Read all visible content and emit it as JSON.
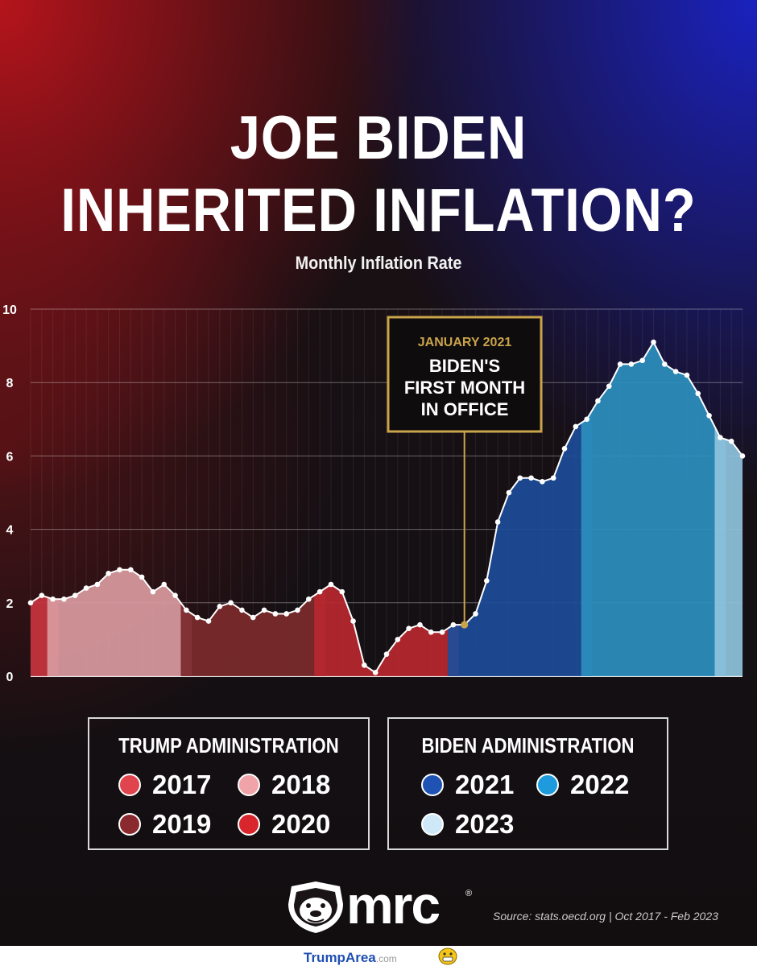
{
  "title_line_1": "JOE BIDEN",
  "title_line_2": "INHERITED INFLATION?",
  "subtitle": "Monthly Inflation Rate",
  "chart_data": {
    "type": "area",
    "ylim": [
      0,
      10
    ],
    "yticks": [
      "0",
      "2",
      "4",
      "6",
      "8",
      "10"
    ],
    "grid": true,
    "x_range": [
      "Oct 2017",
      "Feb 2023"
    ],
    "values": [
      2.0,
      2.2,
      2.1,
      2.1,
      2.2,
      2.4,
      2.5,
      2.8,
      2.9,
      2.9,
      2.7,
      2.3,
      2.5,
      2.2,
      1.8,
      1.6,
      1.5,
      1.9,
      2.0,
      1.8,
      1.6,
      1.8,
      1.7,
      1.7,
      1.8,
      2.1,
      2.3,
      2.5,
      2.3,
      1.5,
      0.3,
      0.1,
      0.6,
      1.0,
      1.3,
      1.4,
      1.2,
      1.2,
      1.4,
      1.4,
      1.7,
      2.6,
      4.2,
      5.0,
      5.4,
      5.4,
      5.3,
      5.4,
      6.2,
      6.8,
      7.0,
      7.5,
      7.9,
      8.5,
      8.5,
      8.6,
      9.1,
      8.5,
      8.3,
      8.2,
      7.7,
      7.1,
      6.5,
      6.4,
      6.0
    ],
    "year_segments": [
      {
        "year": "2017",
        "from": 0,
        "to": 2,
        "color": "#c7343f"
      },
      {
        "year": "2018",
        "from": 2,
        "to": 14,
        "color": "#d99a9f"
      },
      {
        "year": "2019",
        "from": 14,
        "to": 26,
        "color": "#7c2a2d"
      },
      {
        "year": "2020",
        "from": 26,
        "to": 38,
        "color": "#b8282f"
      },
      {
        "year": "2021",
        "from": 38,
        "to": 50,
        "color": "#1d4c99"
      },
      {
        "year": "2022",
        "from": 50,
        "to": 62,
        "color": "#2d8fbe"
      },
      {
        "year": "2023",
        "from": 62,
        "to": 64,
        "color": "#8fc3dd"
      }
    ],
    "annotation": {
      "index": 39,
      "heading": "JANUARY 2021",
      "lines": [
        "BIDEN'S",
        "FIRST MONTH",
        "IN OFFICE"
      ],
      "color": "#c9a44a"
    }
  },
  "legend": {
    "trump_title": "TRUMP ADMINISTRATION",
    "biden_title": "BIDEN ADMINISTRATION",
    "trump_items": [
      {
        "label": "2017",
        "color": "#e0444d"
      },
      {
        "label": "2018",
        "color": "#f0a3a8"
      },
      {
        "label": "2019",
        "color": "#8a2a2e"
      },
      {
        "label": "2020",
        "color": "#d9252c"
      }
    ],
    "biden_items": [
      {
        "label": "2021",
        "color": "#1f53b3"
      },
      {
        "label": "2022",
        "color": "#1e9bdc"
      },
      {
        "label": "2023",
        "color": "#cfe8f7"
      }
    ]
  },
  "logo_text": "mrc",
  "logo_reg": "®",
  "source": "Source: stats.oecd.org  |  Oct 2017 - Feb 2023",
  "footer": {
    "brand": "TrumpArea",
    "suffix": ".com"
  }
}
